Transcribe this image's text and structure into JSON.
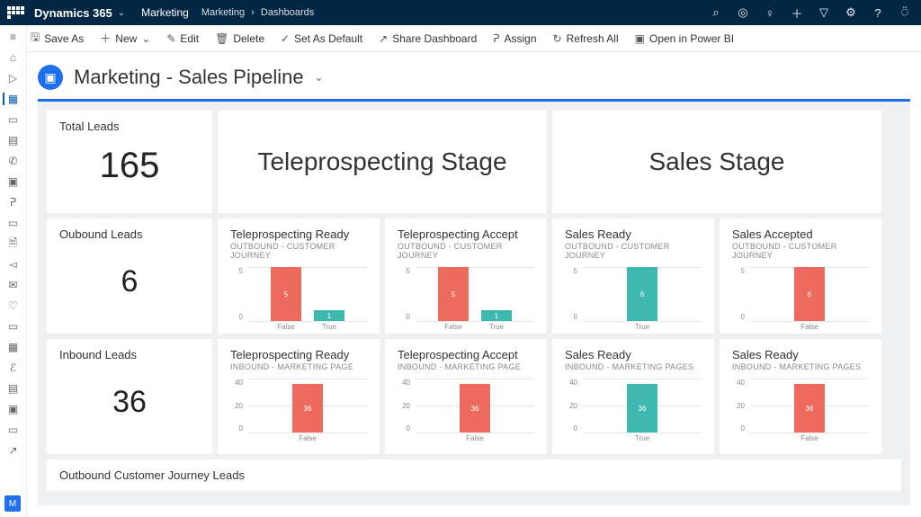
{
  "header": {
    "app_name": "Dynamics 365",
    "area": "Marketing",
    "breadcrumb": [
      "Marketing",
      "Dashboards"
    ]
  },
  "commands": {
    "save_as": "Save As",
    "new": "New",
    "edit": "Edit",
    "delete": "Delete",
    "set_default": "Set As Default",
    "share": "Share Dashboard",
    "assign": "Assign",
    "refresh": "Refresh All",
    "powerbi": "Open in Power BI"
  },
  "title": "Marketing - Sales Pipeline",
  "colors": {
    "coral": "#ed6a5e",
    "teal": "#3fb8af",
    "grid": "#e8e8e8",
    "panel_bg": "#eef0f2",
    "accent": "#1f6feb"
  },
  "row1": {
    "total_leads": {
      "label": "Total Leads",
      "value": "165"
    },
    "stage_a": "Teleprospecting Stage",
    "stage_b": "Sales Stage"
  },
  "row2": {
    "kpi": {
      "label": "Oubound Leads",
      "value": "6"
    },
    "charts": [
      {
        "title": "Teleprospecting Ready",
        "sub": "OUTBOUND - CUSTOMER JOURNEY",
        "ymax": 5,
        "yticks": [
          "5",
          "0"
        ],
        "bars": [
          {
            "x": "False",
            "v": 5,
            "color": "coral"
          },
          {
            "x": "True",
            "v": 1,
            "color": "teal"
          }
        ]
      },
      {
        "title": "Teleprospecting Accept",
        "sub": "OUTBOUND - CUSTOMER JOURNEY",
        "ymax": 5,
        "yticks": [
          "5",
          "0"
        ],
        "bars": [
          {
            "x": "False",
            "v": 5,
            "color": "coral"
          },
          {
            "x": "True",
            "v": 1,
            "color": "teal"
          }
        ]
      },
      {
        "title": "Sales Ready",
        "sub": "OUTBOUND - CUSTOMER JOURNEY",
        "ymax": 6,
        "yticks": [
          "5",
          "0"
        ],
        "bars": [
          {
            "x": "True",
            "v": 6,
            "color": "teal"
          }
        ]
      },
      {
        "title": "Sales Accepted",
        "sub": "OUTBOUND - CUSTOMER JOURNEY",
        "ymax": 6,
        "yticks": [
          "5",
          "0"
        ],
        "bars": [
          {
            "x": "False",
            "v": 6,
            "color": "coral"
          }
        ]
      }
    ]
  },
  "row3": {
    "kpi": {
      "label": "Inbound Leads",
      "value": "36"
    },
    "charts": [
      {
        "title": "Teleprospecting Ready",
        "sub": "INBOUND - MARKETING PAGE",
        "ymax": 40,
        "yticks": [
          "40",
          "20",
          "0"
        ],
        "bars": [
          {
            "x": "False",
            "v": 36,
            "color": "coral"
          }
        ]
      },
      {
        "title": "Teleprospecting Accept",
        "sub": "INBOUND - MARKETING PAGE",
        "ymax": 40,
        "yticks": [
          "40",
          "20",
          "0"
        ],
        "bars": [
          {
            "x": "False",
            "v": 36,
            "color": "coral"
          }
        ]
      },
      {
        "title": "Sales Ready",
        "sub": "INBOUND - MARKETING PAGES",
        "ymax": 40,
        "yticks": [
          "40",
          "20",
          "0"
        ],
        "bars": [
          {
            "x": "True",
            "v": 36,
            "color": "teal"
          }
        ]
      },
      {
        "title": "Sales Ready",
        "sub": "INBOUND - MARKETING PAGES",
        "ymax": 40,
        "yticks": [
          "40",
          "20",
          "0"
        ],
        "bars": [
          {
            "x": "False",
            "v": 36,
            "color": "coral"
          }
        ]
      }
    ]
  },
  "row4": {
    "title": "Outbound Customer Journey Leads"
  }
}
